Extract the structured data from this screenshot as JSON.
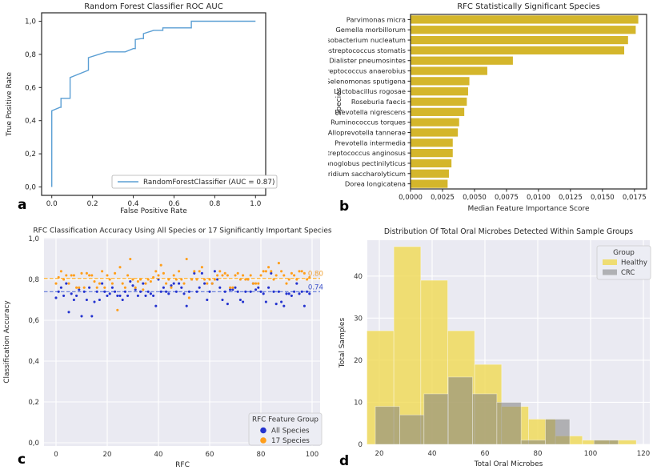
{
  "figure": {
    "panels": [
      {
        "label": "a"
      },
      {
        "label": "b"
      },
      {
        "label": "c"
      },
      {
        "label": "d"
      }
    ]
  },
  "chart_data": [
    {
      "id": "roc",
      "type": "line",
      "title": "Random Forest Classifier ROC AUC",
      "xlabel": "False Positive Rate",
      "ylabel": "True Positive Rate",
      "xlim": [
        0,
        1
      ],
      "ylim": [
        0,
        1
      ],
      "xticks": [
        0,
        0.2,
        0.4,
        0.6,
        0.8,
        1.0
      ],
      "xtick_labels": [
        "0.0",
        "0.2",
        "0.4",
        "0.6",
        "0.8",
        "1.0"
      ],
      "yticks": [
        0,
        0.2,
        0.4,
        0.6,
        0.8,
        1.0
      ],
      "ytick_labels": [
        "0,0",
        "0,2",
        "0,4",
        "0,6",
        "0,8",
        "1,0"
      ],
      "legend_label": "RandomForestClassifier (AUC = 0.87)",
      "auc": 0.87,
      "line_color": "#5b9fd4",
      "grid": false,
      "points": [
        [
          0,
          0
        ],
        [
          0,
          0.46
        ],
        [
          0.04,
          0.48
        ],
        [
          0.045,
          0.48
        ],
        [
          0.045,
          0.535
        ],
        [
          0.09,
          0.535
        ],
        [
          0.09,
          0.66
        ],
        [
          0.18,
          0.705
        ],
        [
          0.18,
          0.78
        ],
        [
          0.27,
          0.815
        ],
        [
          0.36,
          0.815
        ],
        [
          0.4,
          0.835
        ],
        [
          0.41,
          0.835
        ],
        [
          0.41,
          0.89
        ],
        [
          0.44,
          0.895
        ],
        [
          0.45,
          0.895
        ],
        [
          0.45,
          0.925
        ],
        [
          0.5,
          0.945
        ],
        [
          0.545,
          0.945
        ],
        [
          0.545,
          0.96
        ],
        [
          0.685,
          0.96
        ],
        [
          0.685,
          1.0
        ],
        [
          1.0,
          1.0
        ]
      ]
    },
    {
      "id": "species",
      "type": "bar",
      "orientation": "horizontal",
      "title": "RFC Statistically Significant Species",
      "xlabel": "Median Feature Importance Score",
      "ylabel": "Species",
      "bar_color": "#d4b62b",
      "grid": false,
      "xlim": [
        0,
        0.01845
      ],
      "xticks": [
        0,
        0.0025,
        0.005,
        0.0075,
        0.01,
        0.0125,
        0.015,
        0.0175
      ],
      "xtick_labels": [
        "0,0000",
        "0,0025",
        "0,0050",
        "0,0075",
        "0,0100",
        "0,0125",
        "0,0150",
        "0,0175"
      ],
      "categories": [
        "Parvimonas micra",
        "Gemella morbillorum",
        "Fusobacterium nucleatum",
        "Peptostreptococcus stomatis",
        "Dialister pneumosintes",
        "Peptostreptococcus anaerobius",
        "Selenomonas sputigena",
        "Lactobacillus rogosae",
        "Roseburia faecis",
        "Prevotella nigrescens",
        "Ruminococcus torques",
        "Alloprevotella tannerae",
        "Prevotella intermedia",
        "Streptococcus anginosus",
        "Monoglobus pectinilyticus",
        "Clostridium saccharolyticum",
        "Dorea longicatena"
      ],
      "values": [
        0.0178,
        0.0176,
        0.017,
        0.0167,
        0.008,
        0.006,
        0.0046,
        0.0045,
        0.0044,
        0.0042,
        0.0038,
        0.0037,
        0.0033,
        0.0033,
        0.0032,
        0.003,
        0.0029
      ]
    },
    {
      "id": "accuracy",
      "type": "scatter",
      "title": "RFC Classification Accuracy Using All Species or 17 Significantly Important Species",
      "xlabel": "RFC",
      "ylabel": "Classification Accuracy",
      "background": "#eaeaf2",
      "grid": true,
      "grid_color": "#ffffff",
      "xlim": [
        0,
        100
      ],
      "ylim": [
        0,
        1
      ],
      "xticks": [
        0,
        20,
        40,
        60,
        80,
        100
      ],
      "xtick_labels": [
        "0",
        "20",
        "40",
        "60",
        "80",
        "100"
      ],
      "yticks": [
        0,
        0.2,
        0.4,
        0.6,
        0.8,
        1.0
      ],
      "ytick_labels": [
        "0,0",
        "0,2",
        "0,4",
        "0,6",
        "0,8",
        "1,0"
      ],
      "legend_title": "RFC Feature Group",
      "legend_position": "lower right",
      "series": [
        {
          "name": "All Species",
          "color": "#2433cf",
          "mean": 0.74,
          "mean_label": "0.74",
          "mean_label_color": "#3c50c8",
          "mean_line_color": "#5a74d8",
          "y": [
            0.71,
            0.74,
            0.76,
            0.72,
            0.78,
            0.64,
            0.73,
            0.7,
            0.72,
            0.75,
            0.62,
            0.74,
            0.7,
            0.76,
            0.62,
            0.69,
            0.74,
            0.7,
            0.78,
            0.74,
            0.72,
            0.73,
            0.76,
            0.74,
            0.72,
            0.72,
            0.7,
            0.74,
            0.72,
            0.79,
            0.77,
            0.75,
            0.72,
            0.74,
            0.78,
            0.72,
            0.74,
            0.73,
            0.72,
            0.67,
            0.8,
            0.74,
            0.76,
            0.74,
            0.73,
            0.77,
            0.78,
            0.74,
            0.78,
            0.76,
            0.73,
            0.67,
            0.74,
            0.8,
            0.83,
            0.74,
            0.76,
            0.83,
            0.78,
            0.7,
            0.74,
            0.78,
            0.84,
            0.8,
            0.76,
            0.7,
            0.74,
            0.68,
            0.75,
            0.75,
            0.76,
            0.74,
            0.7,
            0.69,
            0.74,
            0.8,
            0.74,
            0.78,
            0.75,
            0.76,
            0.74,
            0.73,
            0.69,
            0.76,
            0.83,
            0.74,
            0.68,
            0.74,
            0.69,
            0.67,
            0.73,
            0.73,
            0.72,
            0.74,
            0.78,
            0.73,
            0.74,
            0.67,
            0.74,
            0.73
          ]
        },
        {
          "name": "17 Species",
          "color": "#ff9e1b",
          "mean": 0.805,
          "mean_label": "0.80",
          "mean_label_color": "#f0a030",
          "mean_line_color": "#ffb12e",
          "y": [
            0.78,
            0.81,
            0.84,
            0.8,
            0.82,
            0.78,
            0.82,
            0.82,
            0.76,
            0.76,
            0.83,
            0.76,
            0.83,
            0.82,
            0.82,
            0.79,
            0.76,
            0.78,
            0.84,
            0.76,
            0.82,
            0.8,
            0.78,
            0.83,
            0.65,
            0.86,
            0.78,
            0.76,
            0.82,
            0.9,
            0.8,
            0.76,
            0.79,
            0.8,
            0.75,
            0.78,
            0.8,
            0.79,
            0.81,
            0.84,
            0.82,
            0.87,
            0.83,
            0.78,
            0.8,
            0.76,
            0.82,
            0.8,
            0.84,
            0.8,
            0.78,
            0.9,
            0.71,
            0.8,
            0.84,
            0.8,
            0.84,
            0.86,
            0.8,
            0.78,
            0.8,
            0.78,
            0.8,
            0.82,
            0.84,
            0.82,
            0.83,
            0.82,
            0.76,
            0.76,
            0.82,
            0.83,
            0.8,
            0.82,
            0.8,
            0.8,
            0.82,
            0.78,
            0.78,
            0.78,
            0.82,
            0.84,
            0.84,
            0.86,
            0.84,
            0.8,
            0.82,
            0.88,
            0.84,
            0.82,
            0.78,
            0.8,
            0.83,
            0.82,
            0.8,
            0.84,
            0.84,
            0.83,
            0.8,
            0.81
          ]
        }
      ]
    },
    {
      "id": "microbes",
      "type": "histogram",
      "title": "Distribution Of Total Oral Microbes Detected Within Sample Groups",
      "xlabel": "Total Oral Microbes",
      "ylabel": "Total Samples",
      "background": "#eaeaf2",
      "grid": true,
      "grid_color": "#ffffff",
      "xlim": [
        13,
        122
      ],
      "ylim": [
        0,
        48.5
      ],
      "xticks": [
        20,
        40,
        60,
        80,
        100,
        120
      ],
      "xtick_labels": [
        "20",
        "40",
        "60",
        "80",
        "100",
        "120"
      ],
      "yticks": [
        0,
        10,
        20,
        30,
        40
      ],
      "ytick_labels": [
        "0",
        "10",
        "20",
        "30",
        "40"
      ],
      "legend_title": "Group",
      "legend_position": "upper right",
      "series": [
        {
          "name": "Healthy",
          "color": "#f0d94e",
          "opacity": 0.78,
          "bin_start": 15.3,
          "bin_width": 10.2,
          "counts": [
            27,
            47,
            39,
            27,
            19,
            9,
            6,
            2,
            1,
            1
          ]
        },
        {
          "name": "CRC",
          "color": "#7f7f7f",
          "opacity": 0.55,
          "bin_start": 18.5,
          "bin_width": 9.2,
          "counts": [
            9,
            7,
            12,
            16,
            12,
            10,
            1,
            6,
            0,
            1
          ]
        }
      ]
    }
  ]
}
